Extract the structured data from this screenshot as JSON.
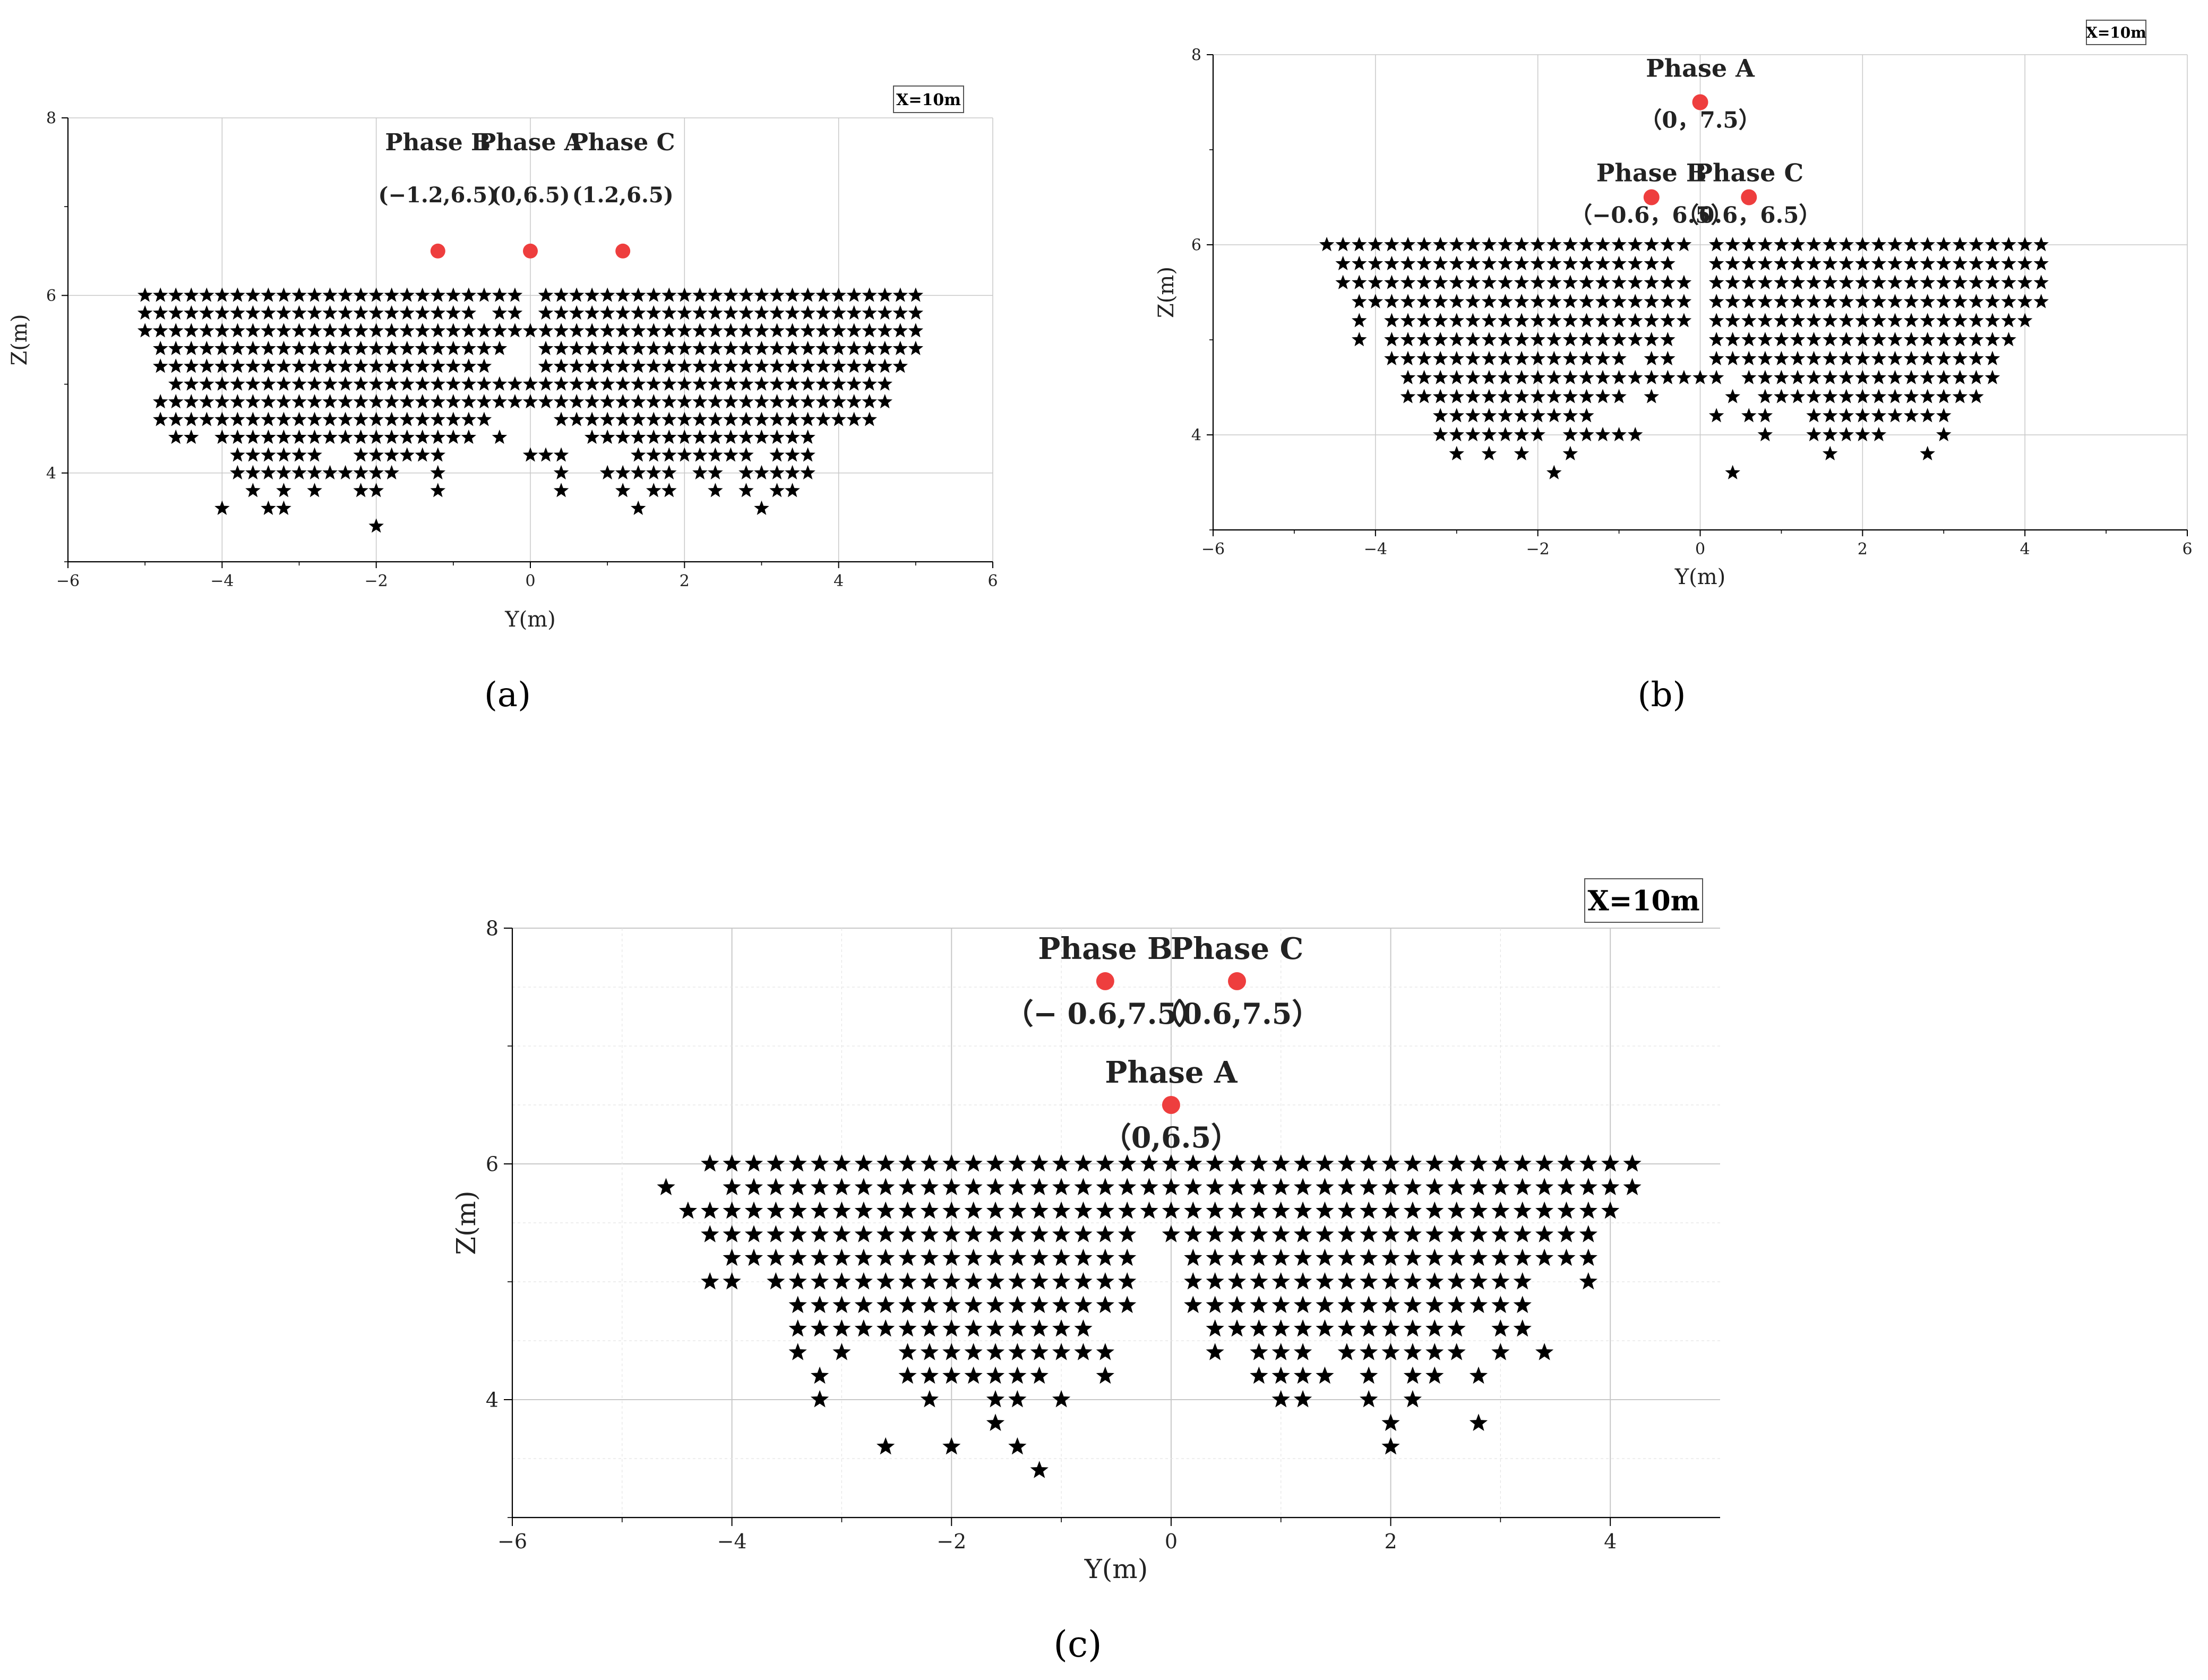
{
  "chart_data": [
    {
      "id": "a",
      "type": "scatter",
      "caption": "(a)",
      "xlabel": "Y(m)",
      "ylabel": "Z(m)",
      "xlim": [
        -6,
        6
      ],
      "ylim": [
        3,
        8
      ],
      "xticks": [
        -6,
        -4,
        -2,
        0,
        2,
        4,
        6
      ],
      "yticks": [
        4,
        6,
        8
      ],
      "xtick_labels": [
        "−6",
        "−4",
        "−2",
        "0",
        "2",
        "4",
        "6"
      ],
      "ytick_labels": [
        "4",
        "6",
        "8"
      ],
      "annotation_box": "X=10m",
      "phases": [
        {
          "name": "Phase  B",
          "coord_label": "(−1.2,6.5)",
          "y": -1.2,
          "z": 6.5,
          "name_pos": "above"
        },
        {
          "name": "Phase A",
          "coord_label": "(0,6.5)",
          "y": 0,
          "z": 6.5,
          "name_pos": "above"
        },
        {
          "name": "Phase C",
          "coord_label": "(1.2,6.5)",
          "y": 1.2,
          "z": 6.5,
          "name_pos": "above"
        }
      ],
      "grid_rows": [
        [
          6.0,
          [
            [
              -5.0,
              -0.2
            ],
            [
              0.2,
              5.0
            ]
          ]
        ],
        [
          5.8,
          [
            [
              -5.0,
              -0.8
            ],
            [
              -0.4,
              -0.2
            ],
            [
              0.2,
              5.0
            ]
          ]
        ],
        [
          5.6,
          [
            [
              -5.0,
              5.0
            ]
          ]
        ],
        [
          5.4,
          [
            [
              -4.8,
              -0.4
            ],
            [
              0.2,
              5.0
            ]
          ]
        ],
        [
          5.2,
          [
            [
              -4.8,
              -0.6
            ],
            [
              0.2,
              4.8
            ]
          ]
        ],
        [
          5.0,
          [
            [
              -4.6,
              -0.6
            ],
            [
              -0.4,
              4.6
            ]
          ]
        ],
        [
          4.8,
          [
            [
              -4.8,
              -0.6
            ],
            [
              -0.4,
              4.6
            ]
          ]
        ],
        [
          4.6,
          [
            [
              -4.8,
              -0.6
            ],
            [
              0.4,
              4.4
            ]
          ]
        ],
        [
          4.4,
          [
            [
              -4.6,
              -4.4
            ],
            [
              -4.0,
              -0.8
            ],
            [
              -0.4,
              -0.4
            ],
            [
              0.8,
              3.6
            ]
          ]
        ],
        [
          4.2,
          [
            [
              -3.8,
              -2.8
            ],
            [
              -2.2,
              -1.2
            ],
            [
              0,
              0.4
            ],
            [
              1.4,
              2.8
            ],
            [
              3.2,
              3.6
            ]
          ]
        ],
        [
          4.0,
          [
            [
              -3.8,
              -2.4
            ],
            [
              -2.2,
              -1.8
            ],
            [
              -1.2,
              -1.2
            ],
            [
              0.4,
              0.4
            ],
            [
              1.0,
              1.8
            ],
            [
              2.2,
              2.4
            ],
            [
              2.8,
              3.6
            ]
          ]
        ],
        [
          3.8,
          [
            [
              -3.6,
              -3.6
            ],
            [
              -3.2,
              -3.2
            ],
            [
              -2.8,
              -2.8
            ],
            [
              -2.2,
              -2.0
            ],
            [
              -1.2,
              -1.2
            ],
            [
              0.4,
              0.4
            ],
            [
              1.2,
              1.2
            ],
            [
              1.6,
              1.8
            ],
            [
              2.4,
              2.4
            ],
            [
              2.8,
              2.8
            ],
            [
              3.2,
              3.4
            ]
          ]
        ],
        [
          3.6,
          [
            [
              -4.0,
              -4.0
            ],
            [
              -3.4,
              -3.2
            ],
            [
              1.4,
              1.4
            ],
            [
              3.0,
              3.0
            ]
          ]
        ],
        [
          3.4,
          [
            [
              -2.0,
              -2.0
            ]
          ]
        ]
      ]
    },
    {
      "id": "b",
      "type": "scatter",
      "caption": "(b)",
      "xlabel": "Y(m)",
      "ylabel": "Z(m)",
      "xlim": [
        -6,
        6
      ],
      "ylim": [
        3,
        8
      ],
      "xticks": [
        -6,
        -4,
        -2,
        0,
        2,
        4,
        6
      ],
      "yticks": [
        4,
        6,
        8
      ],
      "xtick_labels": [
        "−6",
        "−4",
        "−2",
        "0",
        "2",
        "4",
        "6"
      ],
      "ytick_labels": [
        "4",
        "6",
        "8"
      ],
      "annotation_box": "X=10m",
      "phases": [
        {
          "name": "Phase A",
          "coord_label": "（0，7.5）",
          "y": 0,
          "z": 7.5,
          "name_pos": "above"
        },
        {
          "name": "Phase B",
          "coord_label": "（−0.6，6.5）",
          "y": -0.6,
          "z": 6.5,
          "name_pos": "above"
        },
        {
          "name": "Phase C",
          "coord_label": "（0.6，6.5）",
          "y": 0.6,
          "z": 6.5,
          "name_pos": "above"
        }
      ],
      "grid_rows": [
        [
          6.0,
          [
            [
              -4.6,
              -0.2
            ],
            [
              0.2,
              4.2
            ]
          ]
        ],
        [
          5.8,
          [
            [
              -4.4,
              -0.4
            ],
            [
              0.2,
              4.2
            ]
          ]
        ],
        [
          5.6,
          [
            [
              -4.4,
              -0.2
            ],
            [
              0.2,
              4.2
            ]
          ]
        ],
        [
          5.4,
          [
            [
              -4.2,
              -0.2
            ],
            [
              0.2,
              4.2
            ]
          ]
        ],
        [
          5.2,
          [
            [
              -4.2,
              -4.2
            ],
            [
              -3.8,
              -0.2
            ],
            [
              0.2,
              4.0
            ]
          ]
        ],
        [
          5.0,
          [
            [
              -4.2,
              -4.2
            ],
            [
              -3.8,
              -0.4
            ],
            [
              0.2,
              3.8
            ]
          ]
        ],
        [
          4.8,
          [
            [
              -3.8,
              -1.0
            ],
            [
              -0.6,
              -0.4
            ],
            [
              0.2,
              3.6
            ]
          ]
        ],
        [
          4.6,
          [
            [
              -3.6,
              -3.0
            ],
            [
              -2.8,
              -2.4
            ],
            [
              -2.2,
              -0.4
            ],
            [
              -0.2,
              0.2
            ],
            [
              0.6,
              3.6
            ]
          ]
        ],
        [
          4.4,
          [
            [
              -3.6,
              -3.2
            ],
            [
              -3.0,
              -1.0
            ],
            [
              -0.6,
              -0.6
            ],
            [
              0.4,
              0.4
            ],
            [
              0.8,
              3.4
            ]
          ]
        ],
        [
          4.2,
          [
            [
              -3.2,
              -1.4
            ],
            [
              0.2,
              0.2
            ],
            [
              0.6,
              0.8
            ],
            [
              1.4,
              3.0
            ]
          ]
        ],
        [
          4.0,
          [
            [
              -3.2,
              -2.0
            ],
            [
              -1.6,
              -1.2
            ],
            [
              -1.0,
              -0.8
            ],
            [
              0.8,
              0.8
            ],
            [
              1.4,
              2.2
            ],
            [
              3.0,
              3.0
            ]
          ]
        ],
        [
          3.8,
          [
            [
              -3.0,
              -3.0
            ],
            [
              -2.6,
              -2.6
            ],
            [
              -2.2,
              -2.2
            ],
            [
              -1.6,
              -1.6
            ],
            [
              1.6,
              1.6
            ],
            [
              2.8,
              2.8
            ]
          ]
        ],
        [
          3.6,
          [
            [
              -1.8,
              -1.8
            ],
            [
              0.4,
              0.4
            ]
          ]
        ]
      ]
    },
    {
      "id": "c",
      "type": "scatter",
      "caption": "(c)",
      "xlabel": "Y(m)",
      "ylabel": "Z(m)",
      "xlim": [
        -6,
        5
      ],
      "ylim": [
        3,
        8
      ],
      "xticks": [
        -6,
        -4,
        -2,
        0,
        2,
        4
      ],
      "yticks": [
        4,
        6,
        8
      ],
      "xtick_labels": [
        "−6",
        "−4",
        "−2",
        "0",
        "2",
        "4"
      ],
      "ytick_labels": [
        "4",
        "6",
        "8"
      ],
      "annotation_box": "X=10m",
      "phases": [
        {
          "name": "Phase B",
          "coord_label": "（− 0.6,7.5）",
          "y": -0.6,
          "z": 7.55,
          "name_pos": "above"
        },
        {
          "name": "Phase C",
          "coord_label": "（0.6,7.5）",
          "y": 0.6,
          "z": 7.55,
          "name_pos": "above"
        },
        {
          "name": "Phase A",
          "coord_label": "（0,6.5）",
          "y": 0,
          "z": 6.5,
          "name_pos": "above"
        }
      ],
      "grid_rows": [
        [
          6.0,
          [
            [
              -4.2,
              4.2
            ]
          ]
        ],
        [
          5.8,
          [
            [
              -4.6,
              -4.6
            ],
            [
              -4.0,
              4.0
            ],
            [
              4.2,
              4.2
            ]
          ]
        ],
        [
          5.6,
          [
            [
              -4.4,
              4.0
            ]
          ]
        ],
        [
          5.4,
          [
            [
              -4.2,
              -0.4
            ],
            [
              0,
              3.8
            ]
          ]
        ],
        [
          5.2,
          [
            [
              -4.0,
              -0.4
            ],
            [
              0.2,
              3.8
            ]
          ]
        ],
        [
          5.0,
          [
            [
              -4.2,
              -4.0
            ],
            [
              -3.6,
              -0.4
            ],
            [
              0.2,
              3.2
            ],
            [
              3.8,
              3.8
            ]
          ]
        ],
        [
          4.8,
          [
            [
              -3.4,
              -0.4
            ],
            [
              0.2,
              3.2
            ]
          ]
        ],
        [
          4.6,
          [
            [
              -3.4,
              -0.8
            ],
            [
              0.4,
              2.6
            ],
            [
              3.0,
              3.2
            ]
          ]
        ],
        [
          4.4,
          [
            [
              -3.4,
              -3.4
            ],
            [
              -3.0,
              -3.0
            ],
            [
              -2.4,
              -0.6
            ],
            [
              0.4,
              0.4
            ],
            [
              0.8,
              1.2
            ],
            [
              1.6,
              2.6
            ],
            [
              3.0,
              3.0
            ],
            [
              3.4,
              3.4
            ]
          ]
        ],
        [
          4.2,
          [
            [
              -3.2,
              -3.2
            ],
            [
              -2.4,
              -1.2
            ],
            [
              -0.6,
              -0.6
            ],
            [
              0.8,
              1.4
            ],
            [
              1.8,
              1.8
            ],
            [
              2.2,
              2.4
            ],
            [
              2.8,
              2.8
            ]
          ]
        ],
        [
          4.0,
          [
            [
              -3.2,
              -3.2
            ],
            [
              -2.2,
              -2.2
            ],
            [
              -1.6,
              -1.4
            ],
            [
              -1.0,
              -1.0
            ],
            [
              1.0,
              1.2
            ],
            [
              1.8,
              1.8
            ],
            [
              2.2,
              2.2
            ]
          ]
        ],
        [
          3.8,
          [
            [
              -1.6,
              -1.6
            ],
            [
              2.0,
              2.0
            ],
            [
              2.8,
              2.8
            ]
          ]
        ],
        [
          3.6,
          [
            [
              -2.6,
              -2.6
            ],
            [
              -2.0,
              -2.0
            ],
            [
              -1.4,
              -1.4
            ],
            [
              2.0,
              2.0
            ]
          ]
        ],
        [
          3.4,
          [
            [
              -1.2,
              -1.2
            ]
          ]
        ]
      ]
    }
  ]
}
